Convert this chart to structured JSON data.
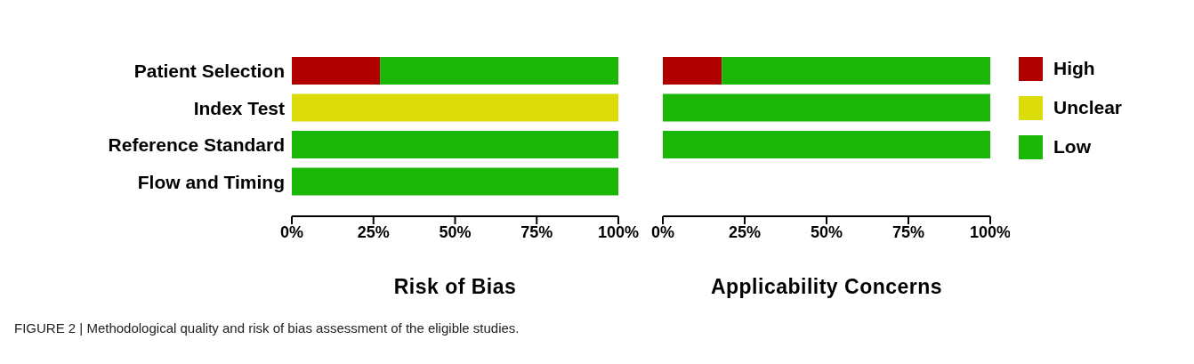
{
  "chart_data": [
    {
      "type": "bar",
      "orientation": "horizontal",
      "stacked": true,
      "xlabel": "Risk of Bias",
      "categories": [
        "Patient Selection",
        "Index Test",
        "Reference Standard",
        "Flow and Timing"
      ],
      "series": [
        {
          "color": "#b00000",
          "values": [
            27,
            0,
            0,
            0
          ]
        },
        {
          "color": "#dcdc0a",
          "values": [
            0,
            100,
            0,
            0
          ]
        },
        {
          "color": "#1ab707",
          "values": [
            73,
            0,
            100,
            100
          ]
        }
      ],
      "xlim": [
        0,
        100
      ],
      "xticks": [
        {
          "value": 0,
          "label": "0%"
        },
        {
          "value": 25,
          "label": "25%"
        },
        {
          "value": 50,
          "label": "50%"
        },
        {
          "value": 75,
          "label": "75%"
        },
        {
          "value": 100,
          "label": "100%"
        }
      ],
      "annotations": [
        "FIGURE 2 | Methodological quality and risk of bias assessment of the eligible studies."
      ]
    },
    {
      "type": "bar",
      "orientation": "horizontal",
      "stacked": true,
      "xlabel": "Applicability Concerns",
      "categories": [
        null,
        null,
        null,
        null
      ],
      "legend": "right",
      "series": [
        {
          "name": "High",
          "color": "#b00000",
          "values": [
            18,
            0,
            0,
            null
          ]
        },
        {
          "name": "Unclear",
          "color": "#dcdc0a",
          "values": [
            0,
            0,
            0,
            null
          ]
        },
        {
          "name": "Low",
          "color": "#1ab707",
          "values": [
            82,
            100,
            100,
            null
          ]
        }
      ],
      "xlim": [
        0,
        100
      ],
      "xticks": [
        {
          "value": 0,
          "label": "0%"
        },
        {
          "value": 25,
          "label": "25%"
        },
        {
          "value": 50,
          "label": "50%"
        },
        {
          "value": 75,
          "label": "75%"
        },
        {
          "value": 100,
          "label": "100%"
        }
      ]
    }
  ]
}
